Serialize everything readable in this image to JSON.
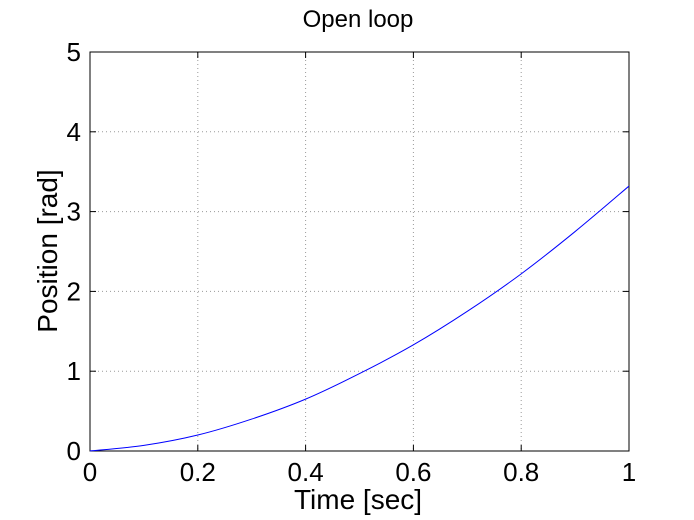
{
  "chart_data": {
    "type": "line",
    "title": "Open loop",
    "xlabel": "Time [sec]",
    "ylabel": "Position [rad]",
    "xlim": [
      0,
      1
    ],
    "ylim": [
      0,
      5
    ],
    "xticks": [
      0,
      0.2,
      0.4,
      0.6,
      0.8,
      1
    ],
    "xtick_labels": [
      "0",
      "0.2",
      "0.4",
      "0.6",
      "0.8",
      "1"
    ],
    "yticks": [
      0,
      1,
      2,
      3,
      4,
      5
    ],
    "ytick_labels": [
      "0",
      "1",
      "2",
      "3",
      "4",
      "5"
    ],
    "grid": true,
    "series": [
      {
        "color": "#0000ff",
        "x": [
          0,
          0.1,
          0.2,
          0.3,
          0.4,
          0.5,
          0.6,
          0.7,
          0.8,
          0.9,
          1.0
        ],
        "y": [
          0,
          0.07,
          0.2,
          0.4,
          0.65,
          0.97,
          1.33,
          1.75,
          2.22,
          2.75,
          3.32
        ]
      }
    ]
  }
}
